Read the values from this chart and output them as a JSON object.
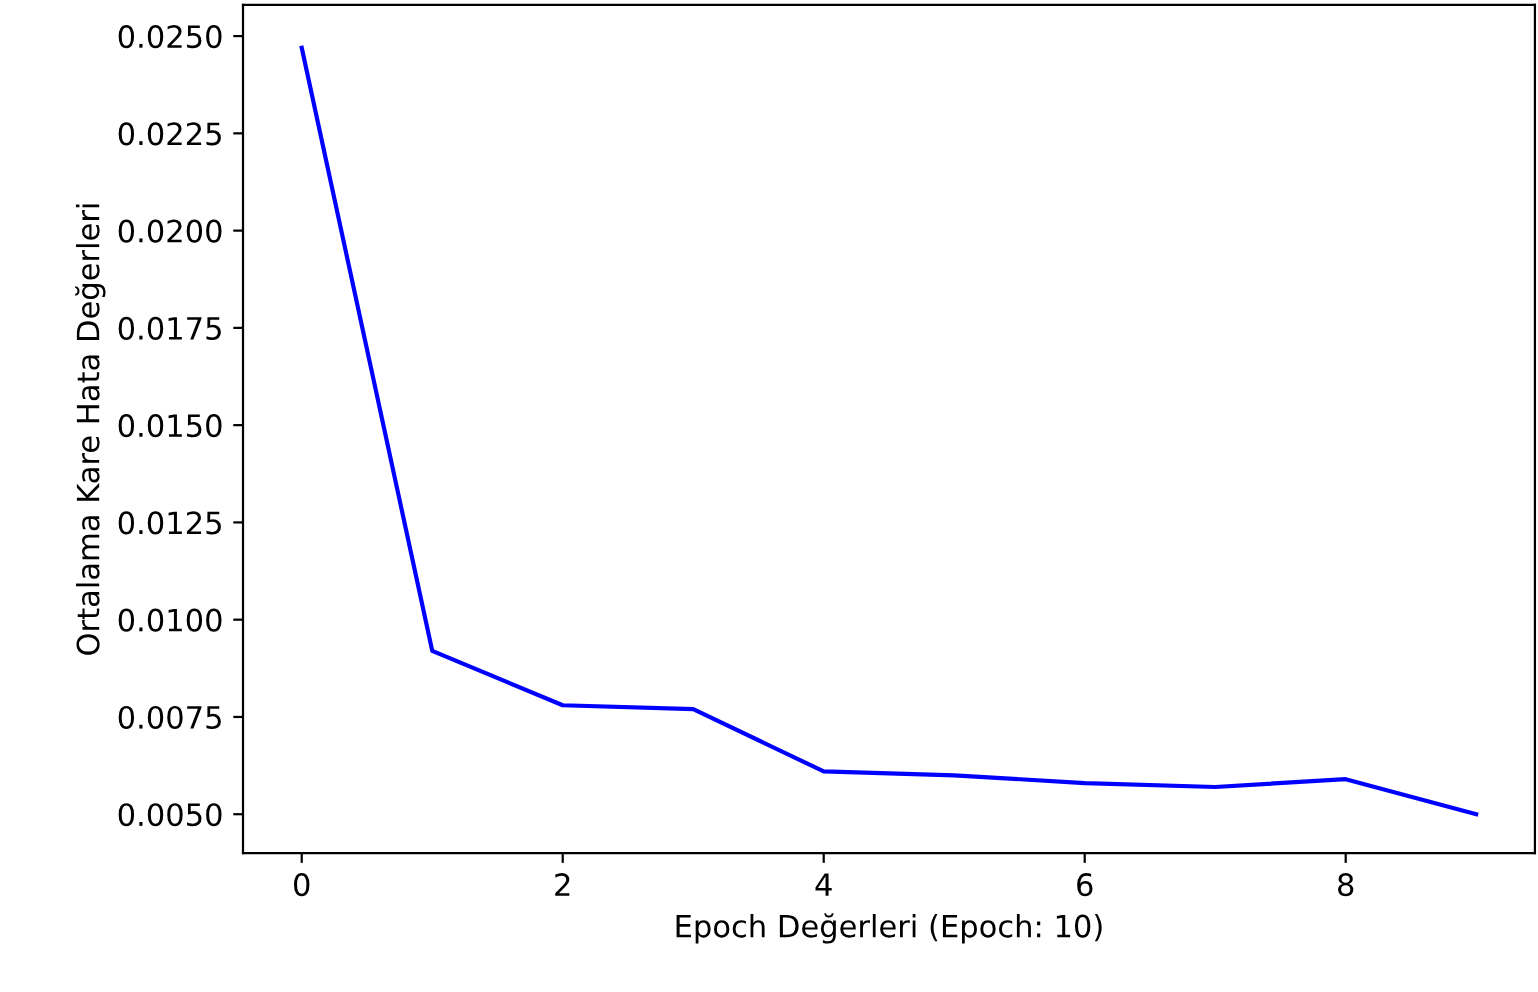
{
  "chart_data": {
    "type": "line",
    "xlabel": "Epoch Değerleri (Epoch: 10)",
    "ylabel": "Ortalama Kare Hata Değerleri",
    "x": [
      0,
      1,
      2,
      3,
      4,
      5,
      6,
      7,
      8,
      9
    ],
    "series": [
      {
        "color": "#0000ff",
        "values": [
          0.0247,
          0.0092,
          0.0078,
          0.0077,
          0.0061,
          0.006,
          0.0058,
          0.0057,
          0.0059,
          0.005
        ]
      }
    ],
    "xlim": [
      -0.45,
      9.45
    ],
    "ylim": [
      0.004,
      0.0258
    ],
    "xticks": [
      0,
      2,
      4,
      6,
      8
    ],
    "yticks": [
      {
        "value": 0.005,
        "label": "0.0050"
      },
      {
        "value": 0.0075,
        "label": "0.0075"
      },
      {
        "value": 0.01,
        "label": "0.0100"
      },
      {
        "value": 0.0125,
        "label": "0.0125"
      },
      {
        "value": 0.015,
        "label": "0.0150"
      },
      {
        "value": 0.0175,
        "label": "0.0175"
      },
      {
        "value": 0.02,
        "label": "0.0200"
      },
      {
        "value": 0.0225,
        "label": "0.0225"
      },
      {
        "value": 0.025,
        "label": "0.0250"
      }
    ],
    "grid": false
  }
}
